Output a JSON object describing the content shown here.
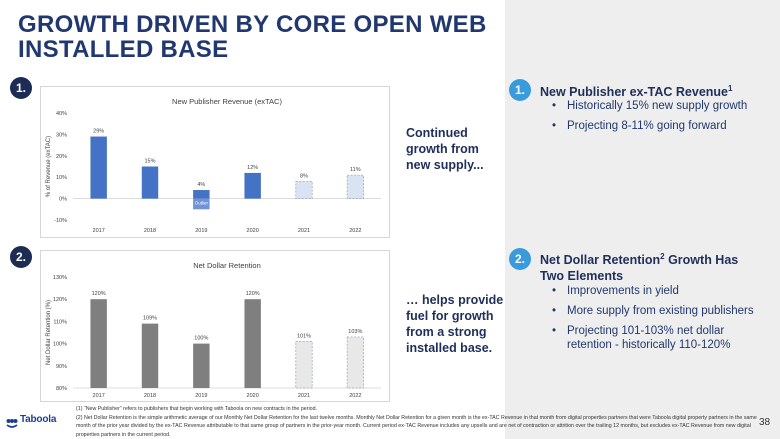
{
  "title": "GROWTH DRIVEN BY CORE OPEN WEB INSTALLED BASE",
  "badges": {
    "one": "1.",
    "two": "2."
  },
  "chart1": {
    "title": "New Publisher Revenue (exTAC)",
    "ylabel": "% of Revenue (exTAC)",
    "outlier_label": "Outlier",
    "colors": {
      "actual": "#4472c4",
      "projected": "#dae3f3"
    },
    "chart_data": {
      "type": "bar",
      "title": "New Publisher Revenue (exTAC)",
      "xlabel": "",
      "ylabel": "% of Revenue (exTAC)",
      "categories": [
        "2017",
        "2018",
        "2019",
        "2020",
        "2021",
        "2022"
      ],
      "values": [
        29,
        15,
        4,
        12,
        8,
        11
      ],
      "data_labels": [
        "29%",
        "15%",
        "4%",
        "12%",
        "8%",
        "11%"
      ],
      "projected": [
        false,
        false,
        false,
        false,
        true,
        true
      ],
      "ylim": [
        -10,
        40
      ],
      "yticks": [
        -10,
        0,
        10,
        20,
        30,
        40
      ],
      "ytick_labels": [
        "-10%",
        "0%",
        "10%",
        "20%",
        "30%",
        "40%"
      ],
      "annotations": [
        {
          "category": "2019",
          "text": "Outlier"
        }
      ],
      "grid": false
    }
  },
  "chart2": {
    "title": "Net Dollar Retention",
    "ylabel": "Net Dollar Retention (%)",
    "colors": {
      "actual": "#7f7f7f",
      "projected": "#e8e8e8"
    },
    "chart_data": {
      "type": "bar",
      "title": "Net Dollar Retention",
      "xlabel": "",
      "ylabel": "Net Dollar Retention (%)",
      "categories": [
        "2017",
        "2018",
        "2019",
        "2020",
        "2021",
        "2022"
      ],
      "values": [
        120,
        109,
        100,
        120,
        101,
        103
      ],
      "data_labels": [
        "120%",
        "109%",
        "100%",
        "120%",
        "101%",
        "103%"
      ],
      "projected": [
        false,
        false,
        false,
        false,
        true,
        true
      ],
      "ylim": [
        80,
        130
      ],
      "yticks": [
        80,
        90,
        100,
        110,
        120,
        130
      ],
      "ytick_labels": [
        "80%",
        "90%",
        "100%",
        "110%",
        "120%",
        "130%"
      ],
      "grid": false
    }
  },
  "mid_text_1": [
    "Continued",
    "growth from",
    "new supply..."
  ],
  "mid_text_2": [
    "… helps provide",
    "fuel for growth",
    "from a strong",
    "installed base."
  ],
  "section1": {
    "badge": "1.",
    "heading": "New Publisher ex-TAC Revenue",
    "heading_sup": "1",
    "bullets": [
      "Historically 15% new supply growth",
      "Projecting 8-11% going forward"
    ]
  },
  "section2": {
    "badge": "2.",
    "heading_a": "Net Dollar Retention",
    "heading_sup": "2",
    "heading_b": " Growth Has",
    "heading_c": "Two Elements",
    "bullets": [
      "Improvements in yield",
      "More supply from existing publishers",
      "Projecting 101-103% net dollar retention - historically 110-120%"
    ]
  },
  "footnotes": [
    "(1) “New Publisher” refers to publishers that begin working with Taboola on new contracts in the period.",
    "(2) Net Dollar Retention is the simple arithmetic average of our Monthly Net Dollar Retention for the last twelve months. Monthly Net Dollar Retention for a given month is the ex-TAC Revenue in that month from digital properties partners that were Taboola digital property partners in the same month of the prior year divided by the ex-TAC Revenue attributable to that same group of partners in the prior-year month. Current period ex-TAC Revenue includes any upsells and are net of contraction or attrition over the trailing 12 months, but excludes ex-TAC Revenue from new digital properties partners in the current period."
  ],
  "logo": {
    "text": "Taboola",
    "icon": "taboola-logo-icon"
  },
  "page_number": "38"
}
